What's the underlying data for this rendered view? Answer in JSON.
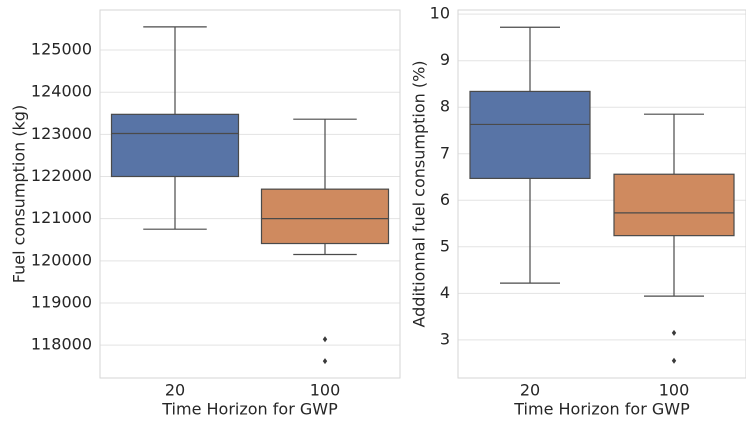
{
  "chart_data": [
    {
      "type": "box",
      "xlabel": "Time Horizon for GWP",
      "ylabel": "Fuel consumption (kg)",
      "categories": [
        "20",
        "100"
      ],
      "colors": [
        "#5874a6",
        "#cf8a5f"
      ],
      "boxes": [
        {
          "whislo": 120750,
          "q1": 122000,
          "med": 123020,
          "q3": 123475,
          "whishi": 125550,
          "fliers": []
        },
        {
          "whislo": 120150,
          "q1": 120410,
          "med": 121000,
          "q3": 121700,
          "whishi": 123360,
          "fliers": [
            118140,
            117620
          ]
        }
      ],
      "ylim": [
        117220,
        125950
      ],
      "yticks": [
        118000,
        119000,
        120000,
        121000,
        122000,
        123000,
        124000,
        125000
      ],
      "grid": true
    },
    {
      "type": "box",
      "xlabel": "Time Horizon for GWP",
      "ylabel": "Additionnal fuel consumption (%)",
      "categories": [
        "20",
        "100"
      ],
      "colors": [
        "#5874a6",
        "#cf8a5f"
      ],
      "boxes": [
        {
          "whislo": 4.22,
          "q1": 6.47,
          "med": 7.63,
          "q3": 8.34,
          "whishi": 9.72,
          "fliers": []
        },
        {
          "whislo": 3.94,
          "q1": 5.24,
          "med": 5.73,
          "q3": 6.56,
          "whishi": 7.85,
          "fliers": [
            3.15,
            2.55
          ]
        }
      ],
      "ylim": [
        2.18,
        10.09
      ],
      "yticks": [
        3,
        4,
        5,
        6,
        7,
        8,
        9,
        10
      ],
      "grid": true
    }
  ]
}
